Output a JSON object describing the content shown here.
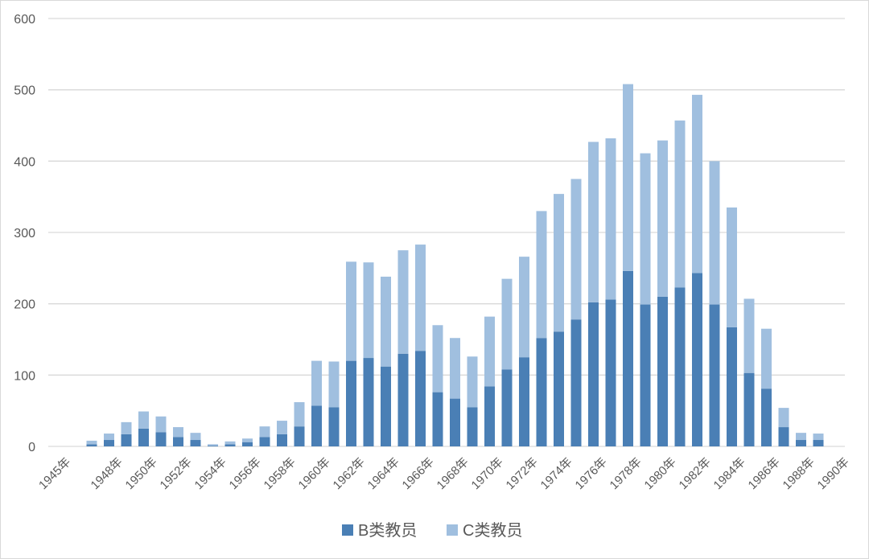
{
  "chart_data": {
    "type": "bar",
    "stacked": true,
    "title": "",
    "xlabel": "",
    "ylabel": "",
    "ylim": [
      0,
      600
    ],
    "yticks": [
      "0",
      "100",
      "200",
      "300",
      "400",
      "500",
      "600"
    ],
    "grid": "horizontal",
    "legend_position": "bottom",
    "categories": [
      "1945年",
      "1946年",
      "1947年",
      "1948年",
      "1949年",
      "1950年",
      "1951年",
      "1952年",
      "1953年",
      "1954年",
      "1955年",
      "1956年",
      "1957年",
      "1958年",
      "1959年",
      "1960年",
      "1961年",
      "1962年",
      "1963年",
      "1964年",
      "1965年",
      "1966年",
      "1967年",
      "1968年",
      "1969年",
      "1970年",
      "1971年",
      "1972年",
      "1973年",
      "1974年",
      "1975年",
      "1976年",
      "1977年",
      "1978年",
      "1979年",
      "1980年",
      "1981年",
      "1982年",
      "1983年",
      "1984年",
      "1985年",
      "1986年",
      "1987年",
      "1988年",
      "1989年",
      "1990年"
    ],
    "xtick_labels": [
      "1945年",
      "1948年",
      "1950年",
      "1952年",
      "1954年",
      "1956年",
      "1958年",
      "1960年",
      "1962年",
      "1964年",
      "1966年",
      "1968年",
      "1970年",
      "1972年",
      "1974年",
      "1976年",
      "1978年",
      "1980年",
      "1982年",
      "1984年",
      "1986年",
      "1988年",
      "1990年"
    ],
    "series": [
      {
        "name": "B类教员",
        "color": "#4a7fb5",
        "values": [
          0,
          3,
          9,
          17,
          25,
          20,
          13,
          9,
          1,
          3,
          6,
          13,
          17,
          28,
          57,
          55,
          120,
          124,
          112,
          130,
          134,
          76,
          67,
          55,
          84,
          108,
          125,
          152,
          161,
          178,
          202,
          206,
          246,
          199,
          210,
          223,
          243,
          199,
          167,
          103,
          81,
          27,
          9,
          9,
          0,
          0
        ]
      },
      {
        "name": "C类教员",
        "color": "#a0bfdf",
        "values": [
          0,
          5,
          9,
          17,
          24,
          22,
          14,
          10,
          2,
          4,
          5,
          15,
          19,
          34,
          63,
          64,
          139,
          134,
          126,
          145,
          149,
          94,
          85,
          71,
          98,
          127,
          141,
          178,
          193,
          197,
          225,
          226,
          262,
          212,
          219,
          234,
          250,
          201,
          168,
          104,
          84,
          27,
          10,
          9,
          0,
          0
        ]
      }
    ]
  }
}
